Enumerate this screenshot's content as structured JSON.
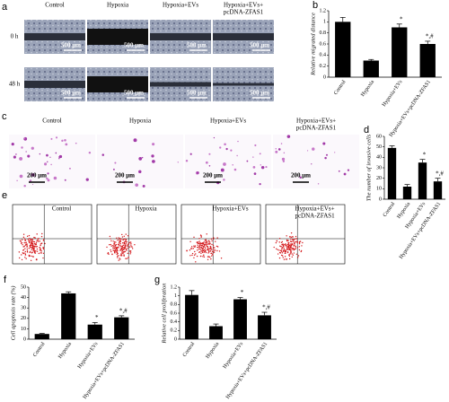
{
  "panel_a": {
    "label": "a",
    "columns": [
      [
        "Control"
      ],
      [
        "Hypoxia"
      ],
      [
        "Hypoxia+EVs"
      ],
      [
        "Hypoxia+EVs+",
        "pcDNA-ZFAS1"
      ]
    ],
    "rows": [
      "0 h",
      "48 h"
    ],
    "scale_bar": "500 μm"
  },
  "panel_c": {
    "label": "c",
    "columns": [
      [
        "Control"
      ],
      [
        "Hypoxia"
      ],
      [
        "Hypoxia+EVs"
      ],
      [
        "Hypoxia+EVs+",
        "pcDNA-ZFAS1"
      ]
    ],
    "scale_bar": "200 μm"
  },
  "panel_e": {
    "label": "e",
    "columns": [
      [
        "Control"
      ],
      [
        "Hypoxia"
      ],
      [
        "Hypoxia+EVs"
      ],
      [
        "Hypoxia+EVs+",
        "pcDNA-ZFAS1"
      ]
    ]
  },
  "chart_data": [
    {
      "type": "bar",
      "panel_label": "b",
      "y_label": "Relative migrated distance",
      "categories": [
        "Control",
        "Hypoxia",
        "Hypoxia+EVs",
        "Hypoxia+EVs+pcDNA-ZFAS1"
      ],
      "values": [
        1.0,
        0.3,
        0.9,
        0.6
      ],
      "errors": [
        0.08,
        0.02,
        0.06,
        0.05
      ],
      "annotations": [
        null,
        null,
        "*",
        "*,#"
      ],
      "color": "#000000",
      "ylim": [
        0,
        1.2
      ],
      "yticks": [
        0,
        0.2,
        0.4,
        0.6,
        0.8,
        1,
        1.2
      ]
    },
    {
      "type": "bar",
      "panel_label": "d",
      "y_label": "The number of invasive cells",
      "categories": [
        "Control",
        "Hypoxia",
        "Hypoxia+EVs",
        "Hypoxia+EVs+pcDNA-ZFAS1"
      ],
      "values": [
        49,
        12,
        35,
        17
      ],
      "errors": [
        2,
        2,
        3,
        3
      ],
      "annotations": [
        null,
        null,
        "*",
        "*,#"
      ],
      "color": "#000000",
      "ylim": [
        0,
        60
      ],
      "yticks": [
        0,
        10,
        20,
        30,
        40,
        50,
        60
      ]
    },
    {
      "type": "bar",
      "panel_label": "f",
      "y_label": "Cell apoptosis rate (%)",
      "categories": [
        "Control",
        "Hypoxia",
        "Hypoxia+EVs",
        "Hypoxia+EVs+pcDNA-ZFAS1"
      ],
      "values": [
        5,
        44,
        14,
        21
      ],
      "errors": [
        0.5,
        1.5,
        2,
        1.5
      ],
      "annotations": [
        null,
        null,
        "*",
        "*,#"
      ],
      "color": "#000000",
      "ylim": [
        0,
        50
      ],
      "yticks": [
        0,
        10,
        20,
        30,
        40,
        50
      ]
    },
    {
      "type": "bar",
      "panel_label": "g",
      "y_label": "Relative cell proliferation",
      "categories": [
        "Control",
        "Hypoxia",
        "Hypoxia+EVs",
        "Hypoxia+EVs+pcDNA-ZFAS1"
      ],
      "values": [
        1.02,
        0.3,
        0.92,
        0.55
      ],
      "errors": [
        0.1,
        0.05,
        0.04,
        0.07
      ],
      "annotations": [
        null,
        null,
        "*",
        "*,#"
      ],
      "color": "#000000",
      "ylim": [
        0,
        1.2
      ],
      "yticks": [
        0,
        0.2,
        0.4,
        0.6,
        0.8,
        1,
        1.2
      ]
    }
  ]
}
